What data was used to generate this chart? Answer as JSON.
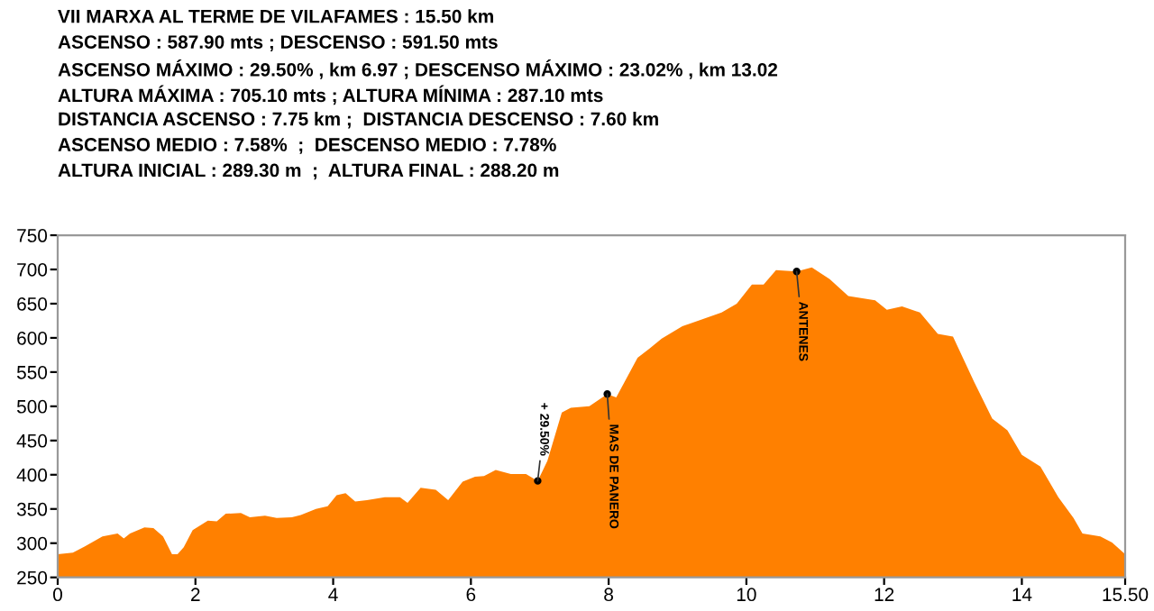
{
  "chart_data": {
    "type": "area",
    "title": "VII MARXA AL TERME DE VILAFAMES : 15.50 km",
    "annotations": [
      "ASCENSO : 587.90 mts ; DESCENSO : 591.50 mts",
      "ASCENSO MÁXIMO : 29.50% , km 6.97 ; DESCENSO MÁXIMO : 23.02% , km 13.02",
      "ALTURA MÁXIMA : 705.10 mts ; ALTURA MÍNIMA : 287.10 mts",
      "DISTANCIA ASCENSO : 7.75 km ;  DISTANCIA DESCENSO : 7.60 km",
      "ASCENSO MEDIO : 7.58%  ;  DESCENSO MEDIO : 7.78%",
      "ALTURA INICIAL : 289.30 m  ;  ALTURA FINAL : 288.20 m",
      {
        "text": "+ 29.50%",
        "x": 6.97,
        "y": 391
      },
      {
        "text": "MAS DE PANERO",
        "x": 7.98,
        "y": 518
      },
      {
        "text": "ANTENES",
        "x": 10.73,
        "y": 697
      }
    ],
    "x": [
      0,
      0.22,
      0.39,
      0.65,
      0.87,
      0.96,
      1.05,
      1.26,
      1.39,
      1.53,
      1.66,
      1.74,
      1.83,
      1.96,
      2.18,
      2.31,
      2.44,
      2.66,
      2.79,
      3.01,
      3.18,
      3.4,
      3.53,
      3.75,
      3.92,
      4.05,
      4.18,
      4.32,
      4.49,
      4.75,
      4.97,
      5.08,
      5.27,
      5.49,
      5.67,
      5.88,
      6.06,
      6.19,
      6.36,
      6.58,
      6.8,
      6.97,
      7.11,
      7.32,
      7.45,
      7.72,
      7.98,
      8.11,
      8.42,
      8.59,
      8.77,
      9.07,
      9.38,
      9.64,
      9.86,
      10.08,
      10.25,
      10.43,
      10.73,
      10.95,
      11.21,
      11.48,
      11.87,
      12.04,
      12.26,
      12.52,
      12.78,
      13.0,
      13.31,
      13.57,
      13.79,
      14.0,
      14.27,
      14.53,
      14.75,
      14.88,
      15.14,
      15.31,
      15.5
    ],
    "series": [
      {
        "color": "#ff8000",
        "values": [
          284,
          286,
          295,
          310,
          314,
          307,
          314,
          323,
          322,
          310,
          284,
          284,
          294,
          319,
          333,
          332,
          343,
          344,
          338,
          340,
          337,
          338,
          341,
          350,
          354,
          370,
          373,
          361,
          363,
          367,
          367,
          359,
          381,
          378,
          363,
          390,
          397,
          398,
          407,
          401,
          401,
          391,
          420,
          491,
          498,
          500,
          518,
          513,
          571,
          584,
          599,
          617,
          628,
          637,
          650,
          678,
          678,
          699,
          697,
          703,
          686,
          661,
          655,
          641,
          646,
          637,
          606,
          602,
          535,
          482,
          465,
          429,
          412,
          367,
          337,
          314,
          310,
          301,
          284
        ]
      }
    ],
    "xlim": [
      0,
      15.5
    ],
    "ylim": [
      250,
      750
    ],
    "xticks": [
      0,
      2,
      4,
      6,
      8,
      10,
      12,
      14,
      {
        "value": 15.5,
        "label": "15.50"
      }
    ],
    "yticks": [
      250,
      300,
      350,
      400,
      450,
      500,
      550,
      600,
      650,
      700,
      750
    ],
    "grid": false,
    "legend": false
  }
}
